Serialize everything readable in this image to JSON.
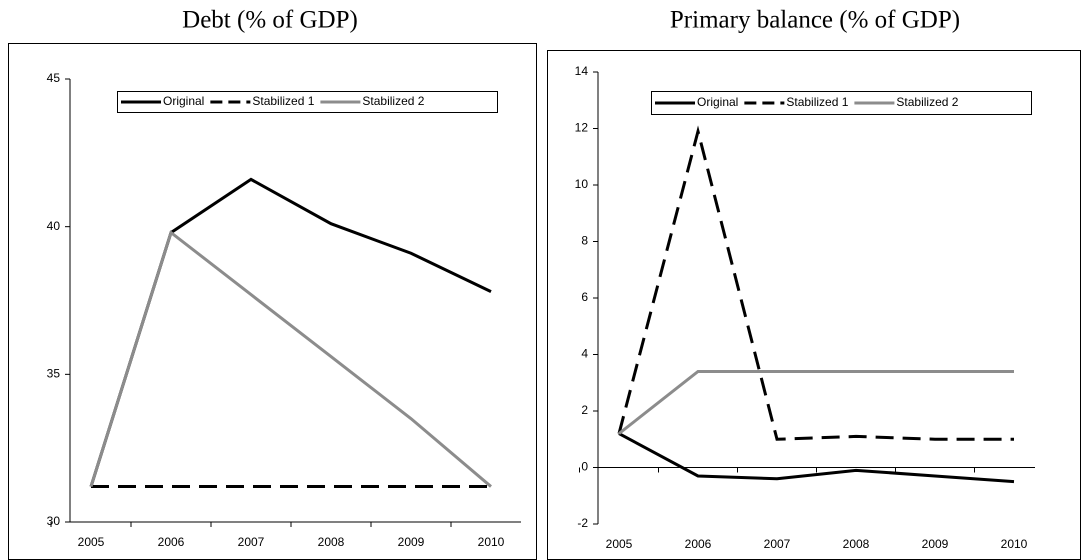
{
  "chart_data": [
    {
      "type": "line",
      "title": "Debt (% of GDP)",
      "categories": [
        "2005",
        "2006",
        "2007",
        "2008",
        "2009",
        "2010"
      ],
      "ylim": [
        30,
        45
      ],
      "yticks": [
        30,
        35,
        40,
        45
      ],
      "legend": "top",
      "series": [
        {
          "name": "Original",
          "color": "#000000",
          "line_style": "solid",
          "values": [
            31.2,
            39.8,
            41.6,
            40.1,
            39.1,
            37.8
          ]
        },
        {
          "name": "Stabilized 1",
          "color": "#000000",
          "line_style": "dashed",
          "values": [
            31.2,
            31.2,
            31.2,
            31.2,
            31.2,
            31.2
          ]
        },
        {
          "name": "Stabilized 2",
          "color": "#8c8c8c",
          "line_style": "solid",
          "values": [
            31.2,
            39.8,
            37.7,
            35.6,
            33.5,
            31.2
          ]
        }
      ]
    },
    {
      "type": "line",
      "title": "Primary balance (% of GDP)",
      "categories": [
        "2005",
        "2006",
        "2007",
        "2008",
        "2009",
        "2010"
      ],
      "ylim": [
        -2,
        14
      ],
      "yticks": [
        -2,
        0,
        2,
        4,
        6,
        8,
        10,
        12,
        14
      ],
      "legend": "top",
      "series": [
        {
          "name": "Original",
          "color": "#000000",
          "line_style": "solid",
          "values": [
            1.2,
            -0.3,
            -0.4,
            -0.1,
            -0.3,
            -0.5
          ]
        },
        {
          "name": "Stabilized 1",
          "color": "#000000",
          "line_style": "dashed",
          "values": [
            1.2,
            11.9,
            1.0,
            1.1,
            1.0,
            1.0
          ]
        },
        {
          "name": "Stabilized 2",
          "color": "#8c8c8c",
          "line_style": "solid",
          "values": [
            1.2,
            3.4,
            3.4,
            3.4,
            3.4,
            3.4
          ]
        }
      ]
    }
  ]
}
